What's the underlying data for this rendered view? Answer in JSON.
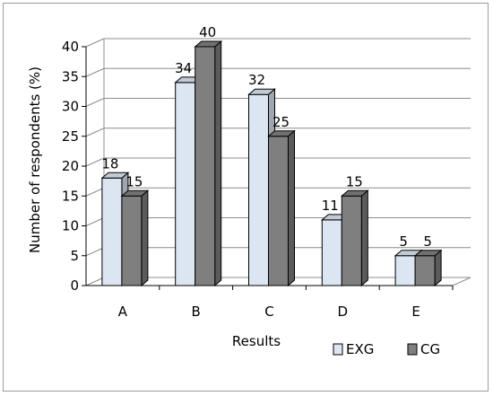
{
  "chart_data": {
    "type": "bar",
    "title": "",
    "xlabel": "Results",
    "ylabel": "Number of respondents (%)",
    "categories": [
      "A",
      "B",
      "C",
      "D",
      "E"
    ],
    "series": [
      {
        "name": "EXG",
        "values": [
          18,
          34,
          32,
          11,
          5
        ],
        "color": "#dce6f2"
      },
      {
        "name": "CG",
        "values": [
          15,
          40,
          25,
          15,
          5
        ],
        "color": "#7f7f7f"
      }
    ],
    "ylim": [
      0,
      40
    ],
    "yticks": [
      "0",
      "5",
      "10",
      "15",
      "20",
      "25",
      "30",
      "35",
      "40"
    ],
    "data_labels": [
      [
        "18",
        "34",
        "32",
        "11",
        "5"
      ],
      [
        "15",
        "40",
        "25",
        "15",
        "5"
      ]
    ],
    "grid": true,
    "legend_position": "bottom-right",
    "style": "3d-clustered-column"
  }
}
